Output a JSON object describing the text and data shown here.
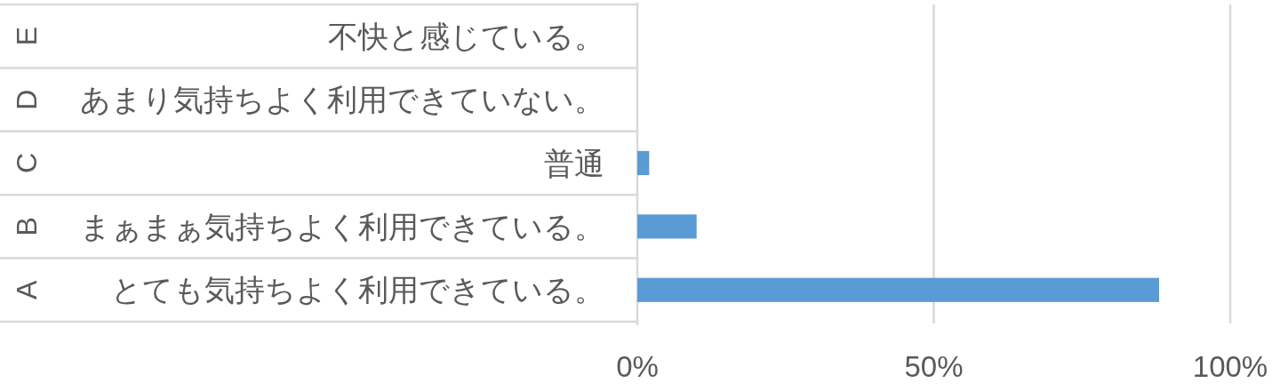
{
  "chart_data": {
    "type": "bar",
    "orientation": "horizontal",
    "categories": [
      "不快と感じている。",
      "あまり気持ちよく利用できていない。",
      "普通",
      "まぁまぁ気持ちよく利用できている。",
      "とても気持ちよく利用できている。"
    ],
    "values": [
      0,
      0,
      2,
      10,
      88
    ],
    "color": "#5b9bd5",
    "xlim": [
      0,
      100
    ],
    "xticks": [
      {
        "value": 0,
        "label": "0%"
      },
      {
        "value": 50,
        "label": "50%"
      },
      {
        "value": 100,
        "label": "100%"
      }
    ],
    "grid": "x",
    "annotations": [
      "E",
      "D",
      "C",
      "B",
      "A"
    ]
  }
}
